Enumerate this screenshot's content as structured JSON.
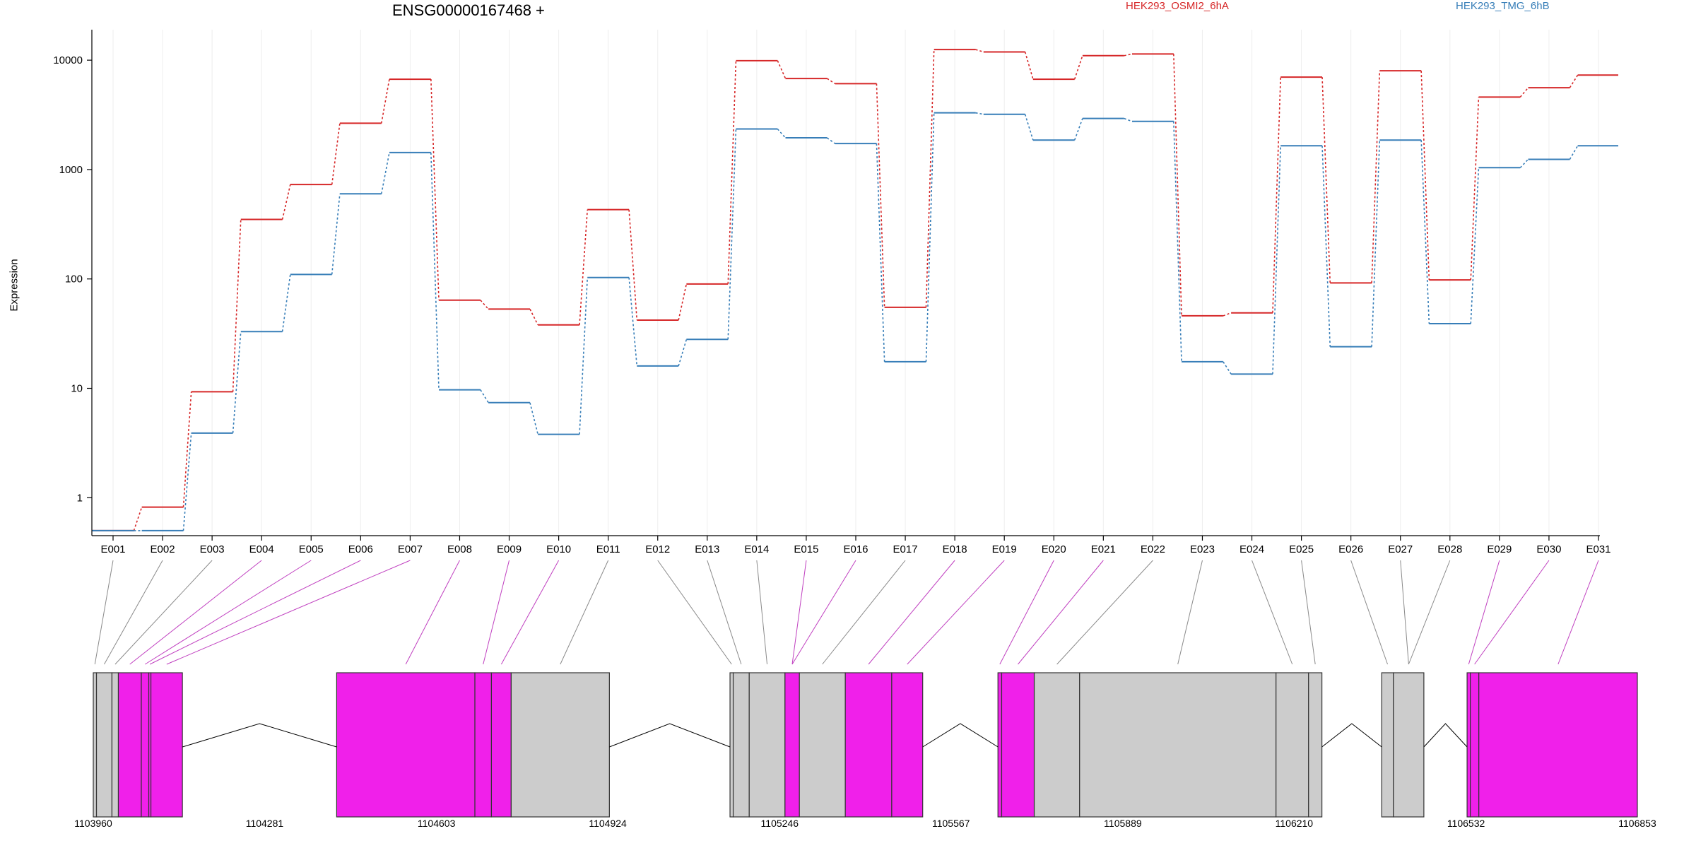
{
  "chart_data": {
    "type": "line",
    "title": "ENSG00000167468 +",
    "ylabel": "Expression",
    "yscale": "log",
    "ylim": [
      0.45,
      19000
    ],
    "yticks": [
      1,
      10,
      100,
      1000,
      10000
    ],
    "ytick_labels": [
      "1",
      "10",
      "100",
      "1000",
      "10000"
    ],
    "grid": true,
    "legend_placement": "top",
    "categories": [
      "E001",
      "E002",
      "E003",
      "E004",
      "E005",
      "E006",
      "E007",
      "E008",
      "E009",
      "E010",
      "E011",
      "E012",
      "E013",
      "E014",
      "E015",
      "E016",
      "E017",
      "E018",
      "E019",
      "E020",
      "E021",
      "E022",
      "E023",
      "E024",
      "E025",
      "E026",
      "E027",
      "E028",
      "E029",
      "E030",
      "E031"
    ],
    "series": [
      {
        "name": "HEK293_OSMI2_6hA",
        "color": "#d62728",
        "values": [
          0.5,
          0.82,
          9.3,
          350,
          730,
          2650,
          6700,
          64,
          53,
          38,
          430,
          42,
          90,
          9900,
          6800,
          6100,
          55,
          12500,
          11900,
          6700,
          11000,
          11400,
          46,
          49,
          7000,
          92,
          8000,
          98,
          4600,
          5600,
          7300
        ]
      },
      {
        "name": "HEK293_TMG_6hB",
        "color": "#377eb8",
        "values": [
          0.5,
          0.5,
          3.9,
          33,
          110,
          600,
          1430,
          9.7,
          7.4,
          3.8,
          103,
          16,
          28,
          2350,
          1950,
          1730,
          17.5,
          3300,
          3200,
          1860,
          2930,
          2760,
          17.5,
          13.5,
          1650,
          24,
          1860,
          39,
          1040,
          1240,
          1650
        ]
      }
    ],
    "gene_model": {
      "coordinate_range": [
        1103960,
        1106853
      ],
      "coordinate_ticks": [
        1103960,
        1104281,
        1104603,
        1104924,
        1105246,
        1105567,
        1105889,
        1106210,
        1106532,
        1106853
      ],
      "colors": {
        "significant": "#f020ea",
        "non_significant": "#cccccc",
        "link_significant": "#c040c0",
        "link_non_significant": "#8a8a8a",
        "border": "#333333"
      },
      "bins": [
        {
          "id": "E001",
          "start": 1103960,
          "end": 1103966,
          "significant": false
        },
        {
          "id": "E002",
          "start": 1103966,
          "end": 1103995,
          "significant": false
        },
        {
          "id": "E003",
          "start": 1103995,
          "end": 1104007,
          "significant": false
        },
        {
          "id": "E004",
          "start": 1104007,
          "end": 1104050,
          "significant": true
        },
        {
          "id": "E005",
          "start": 1104050,
          "end": 1104064,
          "significant": true
        },
        {
          "id": "E006",
          "start": 1104064,
          "end": 1104068,
          "significant": true
        },
        {
          "id": "E007",
          "start": 1104068,
          "end": 1104127,
          "significant": true
        },
        {
          "id": "E008",
          "start": 1104416,
          "end": 1104675,
          "significant": true
        },
        {
          "id": "E009",
          "start": 1104675,
          "end": 1104706,
          "significant": true
        },
        {
          "id": "E010",
          "start": 1104706,
          "end": 1104743,
          "significant": true
        },
        {
          "id": "E011",
          "start": 1104743,
          "end": 1104927,
          "significant": false
        },
        {
          "id": "E012",
          "start": 1105153,
          "end": 1105159,
          "significant": false
        },
        {
          "id": "E013",
          "start": 1105159,
          "end": 1105189,
          "significant": false
        },
        {
          "id": "E014",
          "start": 1105189,
          "end": 1105256,
          "significant": false
        },
        {
          "id": "E015",
          "start": 1105256,
          "end": 1105283,
          "significant": true
        },
        {
          "id": "E016",
          "start": 1105283,
          "end": 1105369,
          "significant": false
        },
        {
          "id": "E017",
          "start": 1105369,
          "end": 1105456,
          "significant": true
        },
        {
          "id": "E018",
          "start": 1105456,
          "end": 1105514,
          "significant": true
        },
        {
          "id": "E019",
          "start": 1105655,
          "end": 1105662,
          "significant": true
        },
        {
          "id": "E020",
          "start": 1105662,
          "end": 1105723,
          "significant": true
        },
        {
          "id": "E021",
          "start": 1105723,
          "end": 1105808,
          "significant": false
        },
        {
          "id": "E022",
          "start": 1105808,
          "end": 1106176,
          "significant": false
        },
        {
          "id": "E023",
          "start": 1106176,
          "end": 1106237,
          "significant": false
        },
        {
          "id": "E024",
          "start": 1106237,
          "end": 1106262,
          "significant": false
        },
        {
          "id": "E025",
          "start": 1106374,
          "end": 1106396,
          "significant": false
        },
        {
          "id": "E026",
          "start": 1106396,
          "end": 1106453,
          "significant": false
        },
        {
          "id": "E027",
          "start": 1106534,
          "end": 1106540,
          "significant": true
        },
        {
          "id": "E028",
          "start": 1106540,
          "end": 1106556,
          "significant": true
        },
        {
          "id": "E029",
          "start": 1106556,
          "end": 1106853,
          "significant": true
        }
      ],
      "links": [
        {
          "label": "E001",
          "bin": 0,
          "significant": false
        },
        {
          "label": "E002",
          "bin": 1,
          "significant": false
        },
        {
          "label": "E003",
          "bin": 2,
          "significant": false
        },
        {
          "label": "E004",
          "bin": 3,
          "significant": true
        },
        {
          "label": "E005",
          "bin": 4,
          "significant": true
        },
        {
          "label": "E006",
          "bin": 5,
          "significant": true
        },
        {
          "label": "E007",
          "bin": 6,
          "significant": true
        },
        {
          "label": "E008",
          "bin": 7,
          "significant": true
        },
        {
          "label": "E009",
          "bin": 8,
          "significant": true
        },
        {
          "label": "E010",
          "bin": 9,
          "significant": true
        },
        {
          "label": "E011",
          "bin": 10,
          "significant": false
        },
        {
          "label": "E012",
          "bin": 11,
          "significant": false
        },
        {
          "label": "E013",
          "bin": 12,
          "significant": false
        },
        {
          "label": "E014",
          "bin": 13,
          "significant": false
        },
        {
          "label": "E015",
          "bin": 14,
          "significant": true
        },
        {
          "label": "E016",
          "bin": 14,
          "significant": true
        },
        {
          "label": "E017",
          "bin": 15,
          "significant": false
        },
        {
          "label": "E018",
          "bin": 16,
          "significant": true
        },
        {
          "label": "E019",
          "bin": 17,
          "significant": true
        },
        {
          "label": "E020",
          "bin": 18,
          "significant": true
        },
        {
          "label": "E021",
          "bin": 19,
          "significant": true
        },
        {
          "label": "E022",
          "bin": 20,
          "significant": false
        },
        {
          "label": "E023",
          "bin": 21,
          "significant": false
        },
        {
          "label": "E024",
          "bin": 22,
          "significant": false
        },
        {
          "label": "E025",
          "bin": 23,
          "significant": false
        },
        {
          "label": "E026",
          "bin": 24,
          "significant": false
        },
        {
          "label": "E027",
          "bin": 25,
          "significant": false
        },
        {
          "label": "E028",
          "bin": 25,
          "significant": false
        },
        {
          "label": "E029",
          "bin": 26,
          "significant": true
        },
        {
          "label": "E030",
          "bin": 27,
          "significant": true
        },
        {
          "label": "E031",
          "bin": 28,
          "significant": true
        }
      ],
      "introns": [
        {
          "from": 1104127,
          "to": 1104416
        },
        {
          "from": 1104927,
          "to": 1105153
        },
        {
          "from": 1105514,
          "to": 1105655
        },
        {
          "from": 1106262,
          "to": 1106374
        },
        {
          "from": 1106453,
          "to": 1106534
        }
      ]
    }
  }
}
